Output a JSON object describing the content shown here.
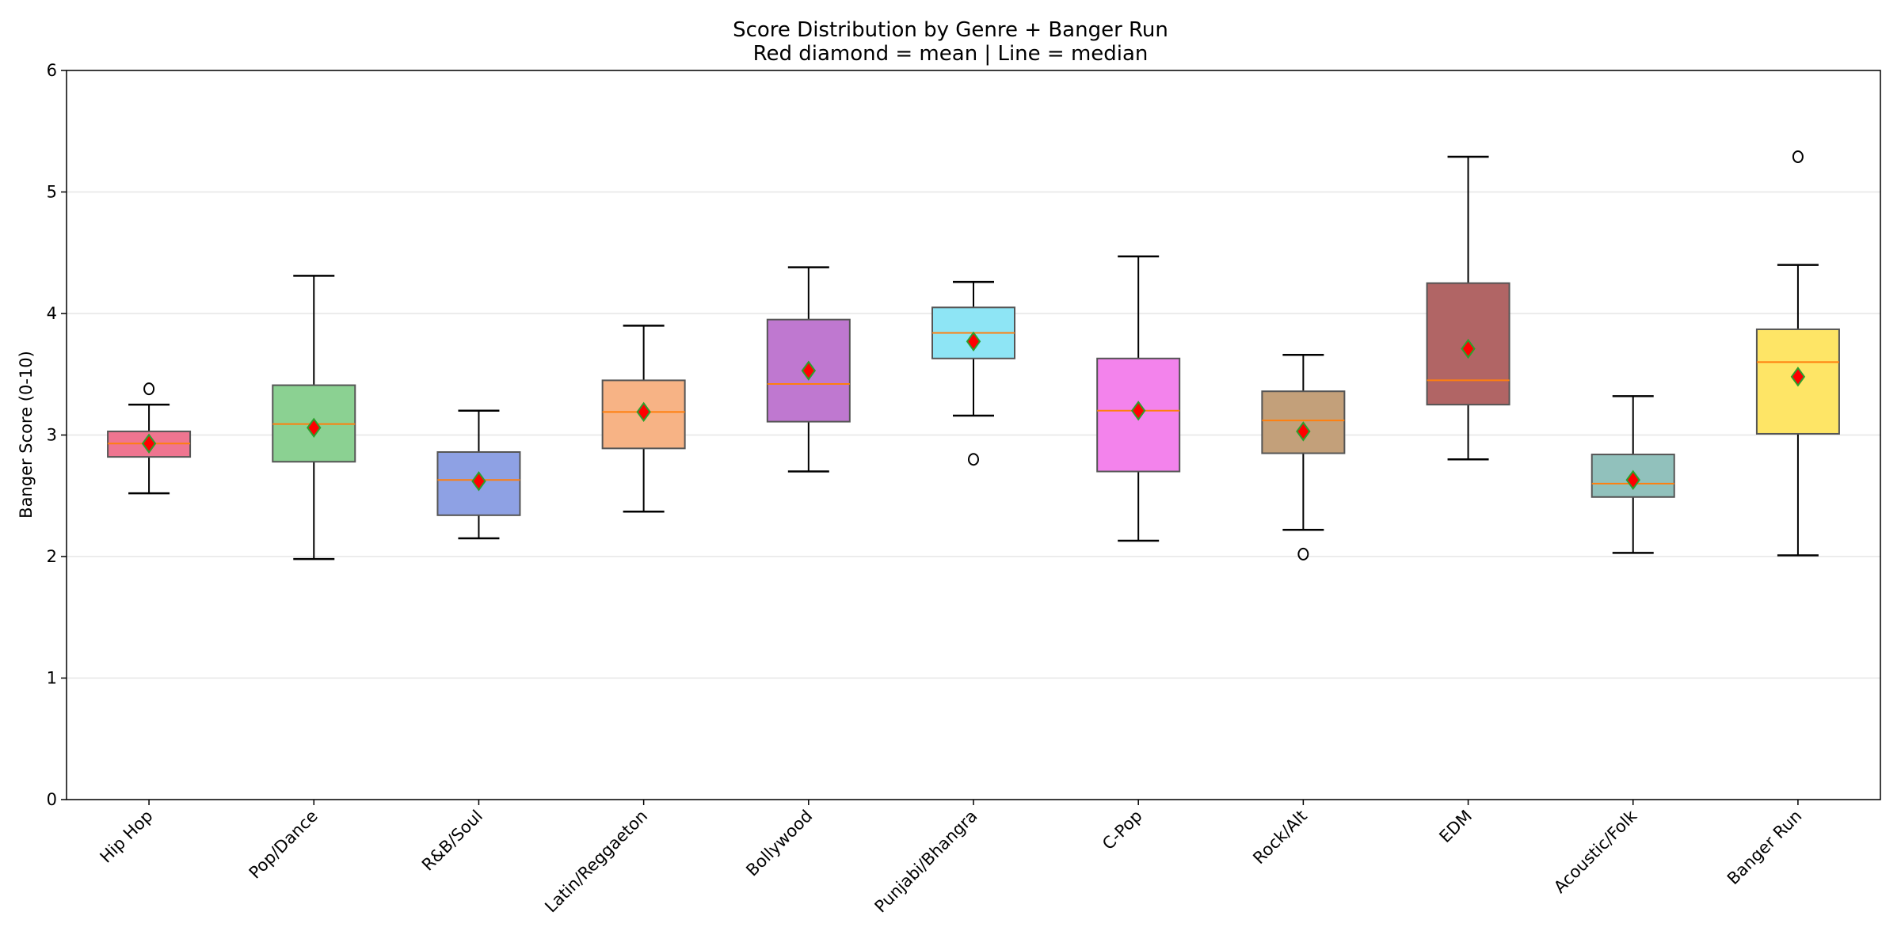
{
  "chart_data": {
    "type": "box",
    "title": "Score Distribution by Genre + Banger Run",
    "subtitle": "Red diamond = mean | Line = median",
    "xlabel": "",
    "ylabel": "Banger Score (0-10)",
    "ylim": [
      0,
      6
    ],
    "yticks": [
      "0",
      "1",
      "2",
      "3",
      "4",
      "5",
      "6"
    ],
    "grid": "y",
    "categories": [
      "Hip Hop",
      "Pop/Dance",
      "R&B/Soul",
      "Latin/Reggaeton",
      "Bollywood",
      "Punjabi/Bhangra",
      "C-Pop",
      "Rock/Alt",
      "EDM",
      "Acoustic/Folk",
      "Banger Run"
    ],
    "boxes": [
      {
        "whislo": 2.52,
        "q1": 2.82,
        "med": 2.93,
        "q3": 3.03,
        "whishi": 3.25,
        "mean": 2.93,
        "fliers": [
          3.38
        ],
        "color": "#ef7590"
      },
      {
        "whislo": 1.98,
        "q1": 2.78,
        "med": 3.09,
        "q3": 3.41,
        "whishi": 4.31,
        "mean": 3.06,
        "fliers": [],
        "color": "#8bd192"
      },
      {
        "whislo": 2.15,
        "q1": 2.34,
        "med": 2.63,
        "q3": 2.86,
        "whishi": 3.2,
        "mean": 2.62,
        "fliers": [],
        "color": "#8ea1e4"
      },
      {
        "whislo": 2.37,
        "q1": 2.89,
        "med": 3.19,
        "q3": 3.45,
        "whishi": 3.9,
        "mean": 3.19,
        "fliers": [],
        "color": "#f7b385"
      },
      {
        "whislo": 2.7,
        "q1": 3.11,
        "med": 3.42,
        "q3": 3.95,
        "whishi": 4.38,
        "mean": 3.53,
        "fliers": [],
        "color": "#bf78d0"
      },
      {
        "whislo": 3.16,
        "q1": 3.63,
        "med": 3.84,
        "q3": 4.05,
        "whishi": 4.26,
        "mean": 3.77,
        "fliers": [
          2.8
        ],
        "color": "#8ee5f5"
      },
      {
        "whislo": 2.13,
        "q1": 2.7,
        "med": 3.2,
        "q3": 3.63,
        "whishi": 4.47,
        "mean": 3.2,
        "fliers": [],
        "color": "#f383ec"
      },
      {
        "whislo": 2.22,
        "q1": 2.85,
        "med": 3.12,
        "q3": 3.36,
        "whishi": 3.66,
        "mean": 3.03,
        "fliers": [
          2.02
        ],
        "color": "#c3a07a"
      },
      {
        "whislo": 2.8,
        "q1": 3.25,
        "med": 3.45,
        "q3": 4.25,
        "whishi": 5.29,
        "mean": 3.71,
        "fliers": [],
        "color": "#b16565"
      },
      {
        "whislo": 2.03,
        "q1": 2.49,
        "med": 2.6,
        "q3": 2.84,
        "whishi": 3.32,
        "mean": 2.63,
        "fliers": [],
        "color": "#91c1bc"
      },
      {
        "whislo": 2.01,
        "q1": 3.01,
        "med": 3.6,
        "q3": 3.87,
        "whishi": 4.4,
        "mean": 3.48,
        "fliers": [
          5.29
        ],
        "color": "#fee566"
      }
    ],
    "median_color": "#ff7f0e",
    "mean_marker_color": "#ff0000",
    "mean_marker_edge": "#2ca02c"
  }
}
